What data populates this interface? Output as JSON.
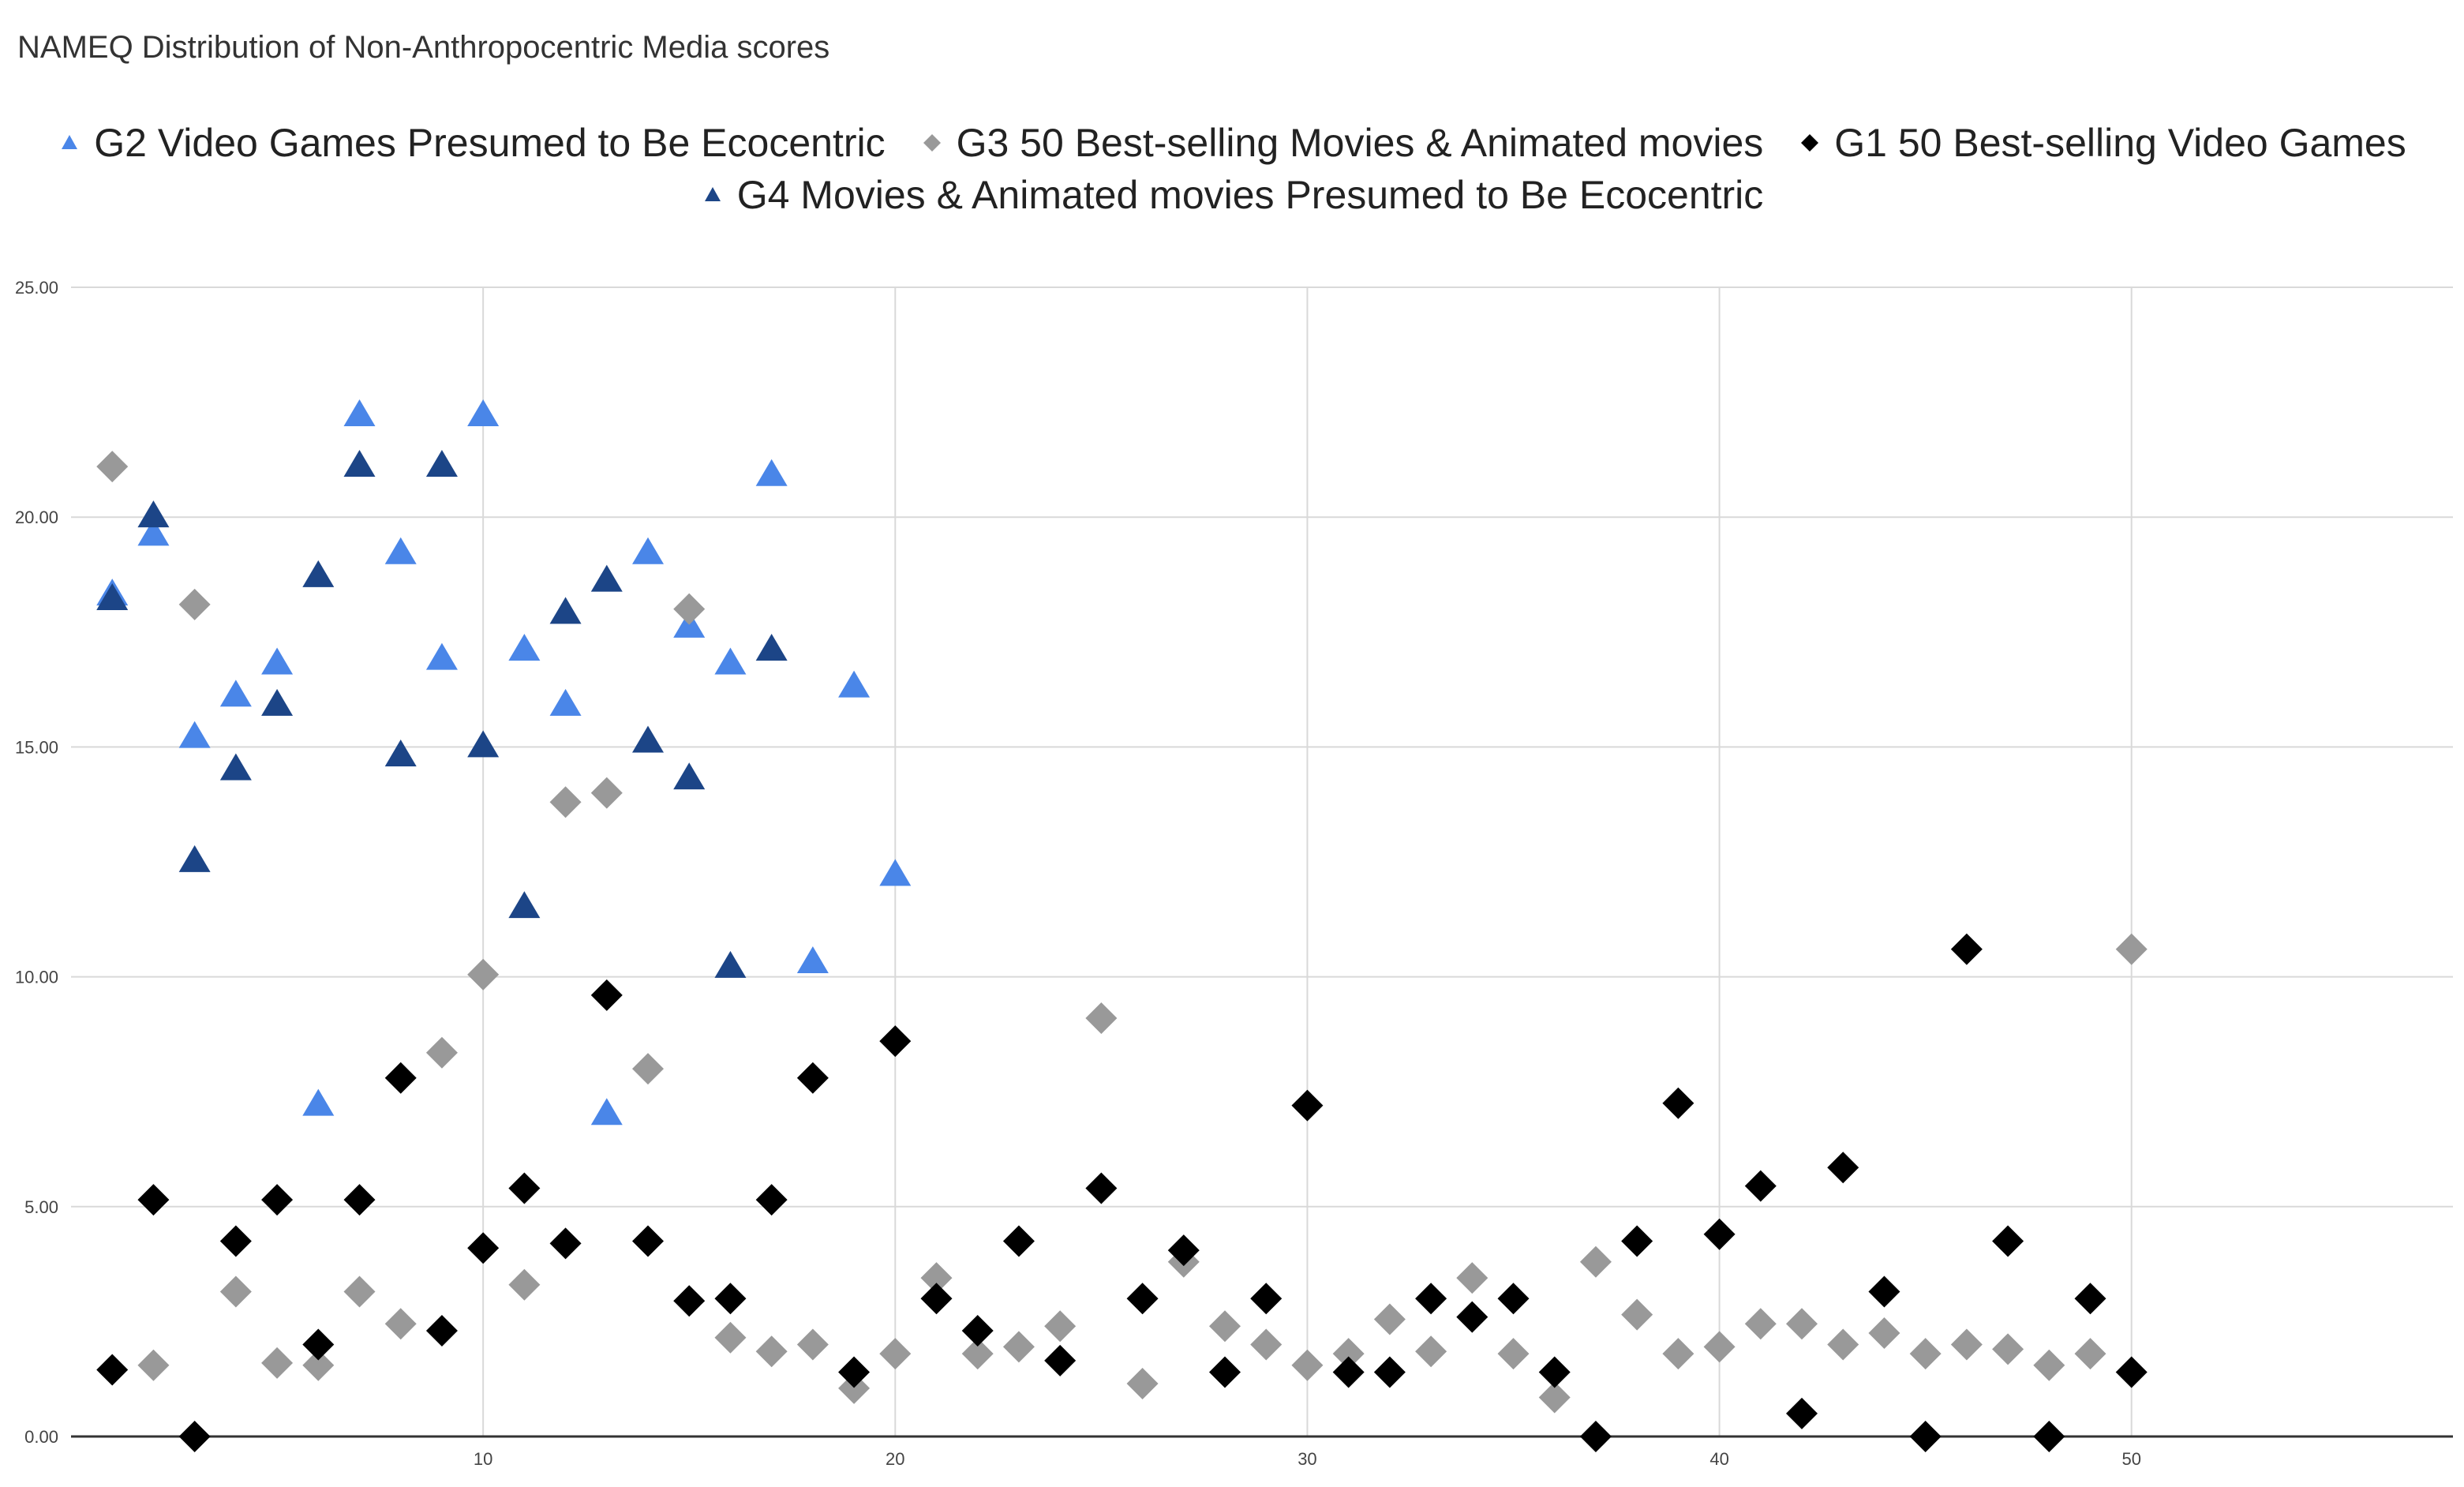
{
  "chart_data": {
    "type": "scatter",
    "title": "NAMEQ Distribution of Non-Anthropocentric Media scores",
    "xlabel": "",
    "ylabel": "",
    "xlim": [
      0,
      57.8
    ],
    "ylim": [
      0,
      25
    ],
    "x_ticks": [
      10,
      20,
      30,
      40,
      50
    ],
    "x_tick_labels": [
      "10",
      "20",
      "30",
      "40",
      "50"
    ],
    "y_ticks": [
      0,
      5,
      10,
      15,
      20,
      25
    ],
    "y_tick_labels": [
      "0.00",
      "5.00",
      "10.00",
      "15.00",
      "20.00",
      "25.00"
    ],
    "grid": true,
    "legend_position": "top",
    "series": [
      {
        "name": "G2 Video Games Presumed to Be Ecocentric",
        "marker": "triangle",
        "color": "#4a86e8",
        "x": [
          1,
          2,
          3,
          4,
          5,
          6,
          7,
          8,
          9,
          10,
          11,
          12,
          13,
          14,
          15,
          16,
          17,
          18,
          19,
          20
        ],
        "y": [
          18.3,
          19.6,
          15.2,
          16.1,
          16.8,
          7.2,
          22.2,
          19.2,
          16.9,
          22.2,
          17.1,
          15.9,
          7.0,
          19.2,
          17.6,
          16.8,
          20.9,
          10.3,
          16.3,
          12.2
        ]
      },
      {
        "name": "G3 50 Best-selling Movies & Animated movies",
        "marker": "diamond",
        "color": "#999999",
        "x": [
          1,
          2,
          3,
          4,
          5,
          6,
          7,
          8,
          9,
          10,
          11,
          12,
          13,
          14,
          15,
          16,
          17,
          18,
          19,
          20,
          21,
          22,
          23,
          24,
          25,
          26,
          27,
          28,
          29,
          30,
          31,
          32,
          33,
          34,
          35,
          36,
          37,
          38,
          39,
          40,
          41,
          42,
          43,
          44,
          45,
          46,
          47,
          48,
          49,
          50
        ],
        "y": [
          21.1,
          1.55,
          18.1,
          3.15,
          1.6,
          1.55,
          3.15,
          2.45,
          8.35,
          10.05,
          3.3,
          13.8,
          14.0,
          8.0,
          18.0,
          2.15,
          1.85,
          2.0,
          1.05,
          1.8,
          3.45,
          1.8,
          1.95,
          2.4,
          9.1,
          1.15,
          3.8,
          2.4,
          2.0,
          1.55,
          1.8,
          2.55,
          1.85,
          3.45,
          1.8,
          0.85,
          3.8,
          2.65,
          1.8,
          1.95,
          2.45,
          2.45,
          2.0,
          2.25,
          1.8,
          2.0,
          1.9,
          1.55,
          1.8,
          10.6
        ]
      },
      {
        "name": "G1 50 Best-selling Video Games",
        "marker": "diamond",
        "color": "#000000",
        "x": [
          1,
          2,
          3,
          4,
          5,
          6,
          7,
          8,
          9,
          10,
          11,
          12,
          13,
          14,
          15,
          16,
          17,
          18,
          19,
          20,
          21,
          22,
          23,
          24,
          25,
          26,
          27,
          28,
          29,
          30,
          31,
          32,
          33,
          34,
          35,
          36,
          37,
          38,
          39,
          40,
          41,
          42,
          43,
          44,
          45,
          46,
          47,
          48,
          49,
          50
        ],
        "y": [
          1.45,
          5.15,
          0.0,
          4.25,
          5.15,
          2.0,
          5.15,
          7.8,
          2.3,
          4.1,
          5.4,
          4.2,
          9.6,
          4.25,
          2.95,
          3.0,
          5.15,
          7.8,
          1.4,
          8.6,
          3.0,
          2.3,
          4.25,
          1.65,
          5.4,
          3.0,
          4.05,
          1.4,
          3.0,
          7.2,
          1.4,
          1.4,
          3.0,
          2.6,
          3.0,
          1.4,
          0.0,
          4.25,
          7.25,
          4.4,
          5.45,
          0.5,
          5.85,
          3.15,
          0.0,
          10.6,
          4.25,
          0.0,
          3.0,
          1.4
        ]
      },
      {
        "name": "G4 Movies & Animated movies Presumed to Be Ecocentric",
        "marker": "triangle",
        "color": "#1c4587",
        "x": [
          1,
          2,
          3,
          4,
          5,
          6,
          7,
          8,
          9,
          10,
          11,
          12,
          13,
          14,
          15,
          16,
          17
        ],
        "y": [
          18.2,
          20.0,
          12.5,
          14.5,
          15.9,
          18.7,
          21.1,
          14.8,
          21.1,
          15.0,
          11.5,
          17.9,
          18.6,
          15.1,
          14.3,
          10.2,
          17.1
        ]
      }
    ]
  }
}
